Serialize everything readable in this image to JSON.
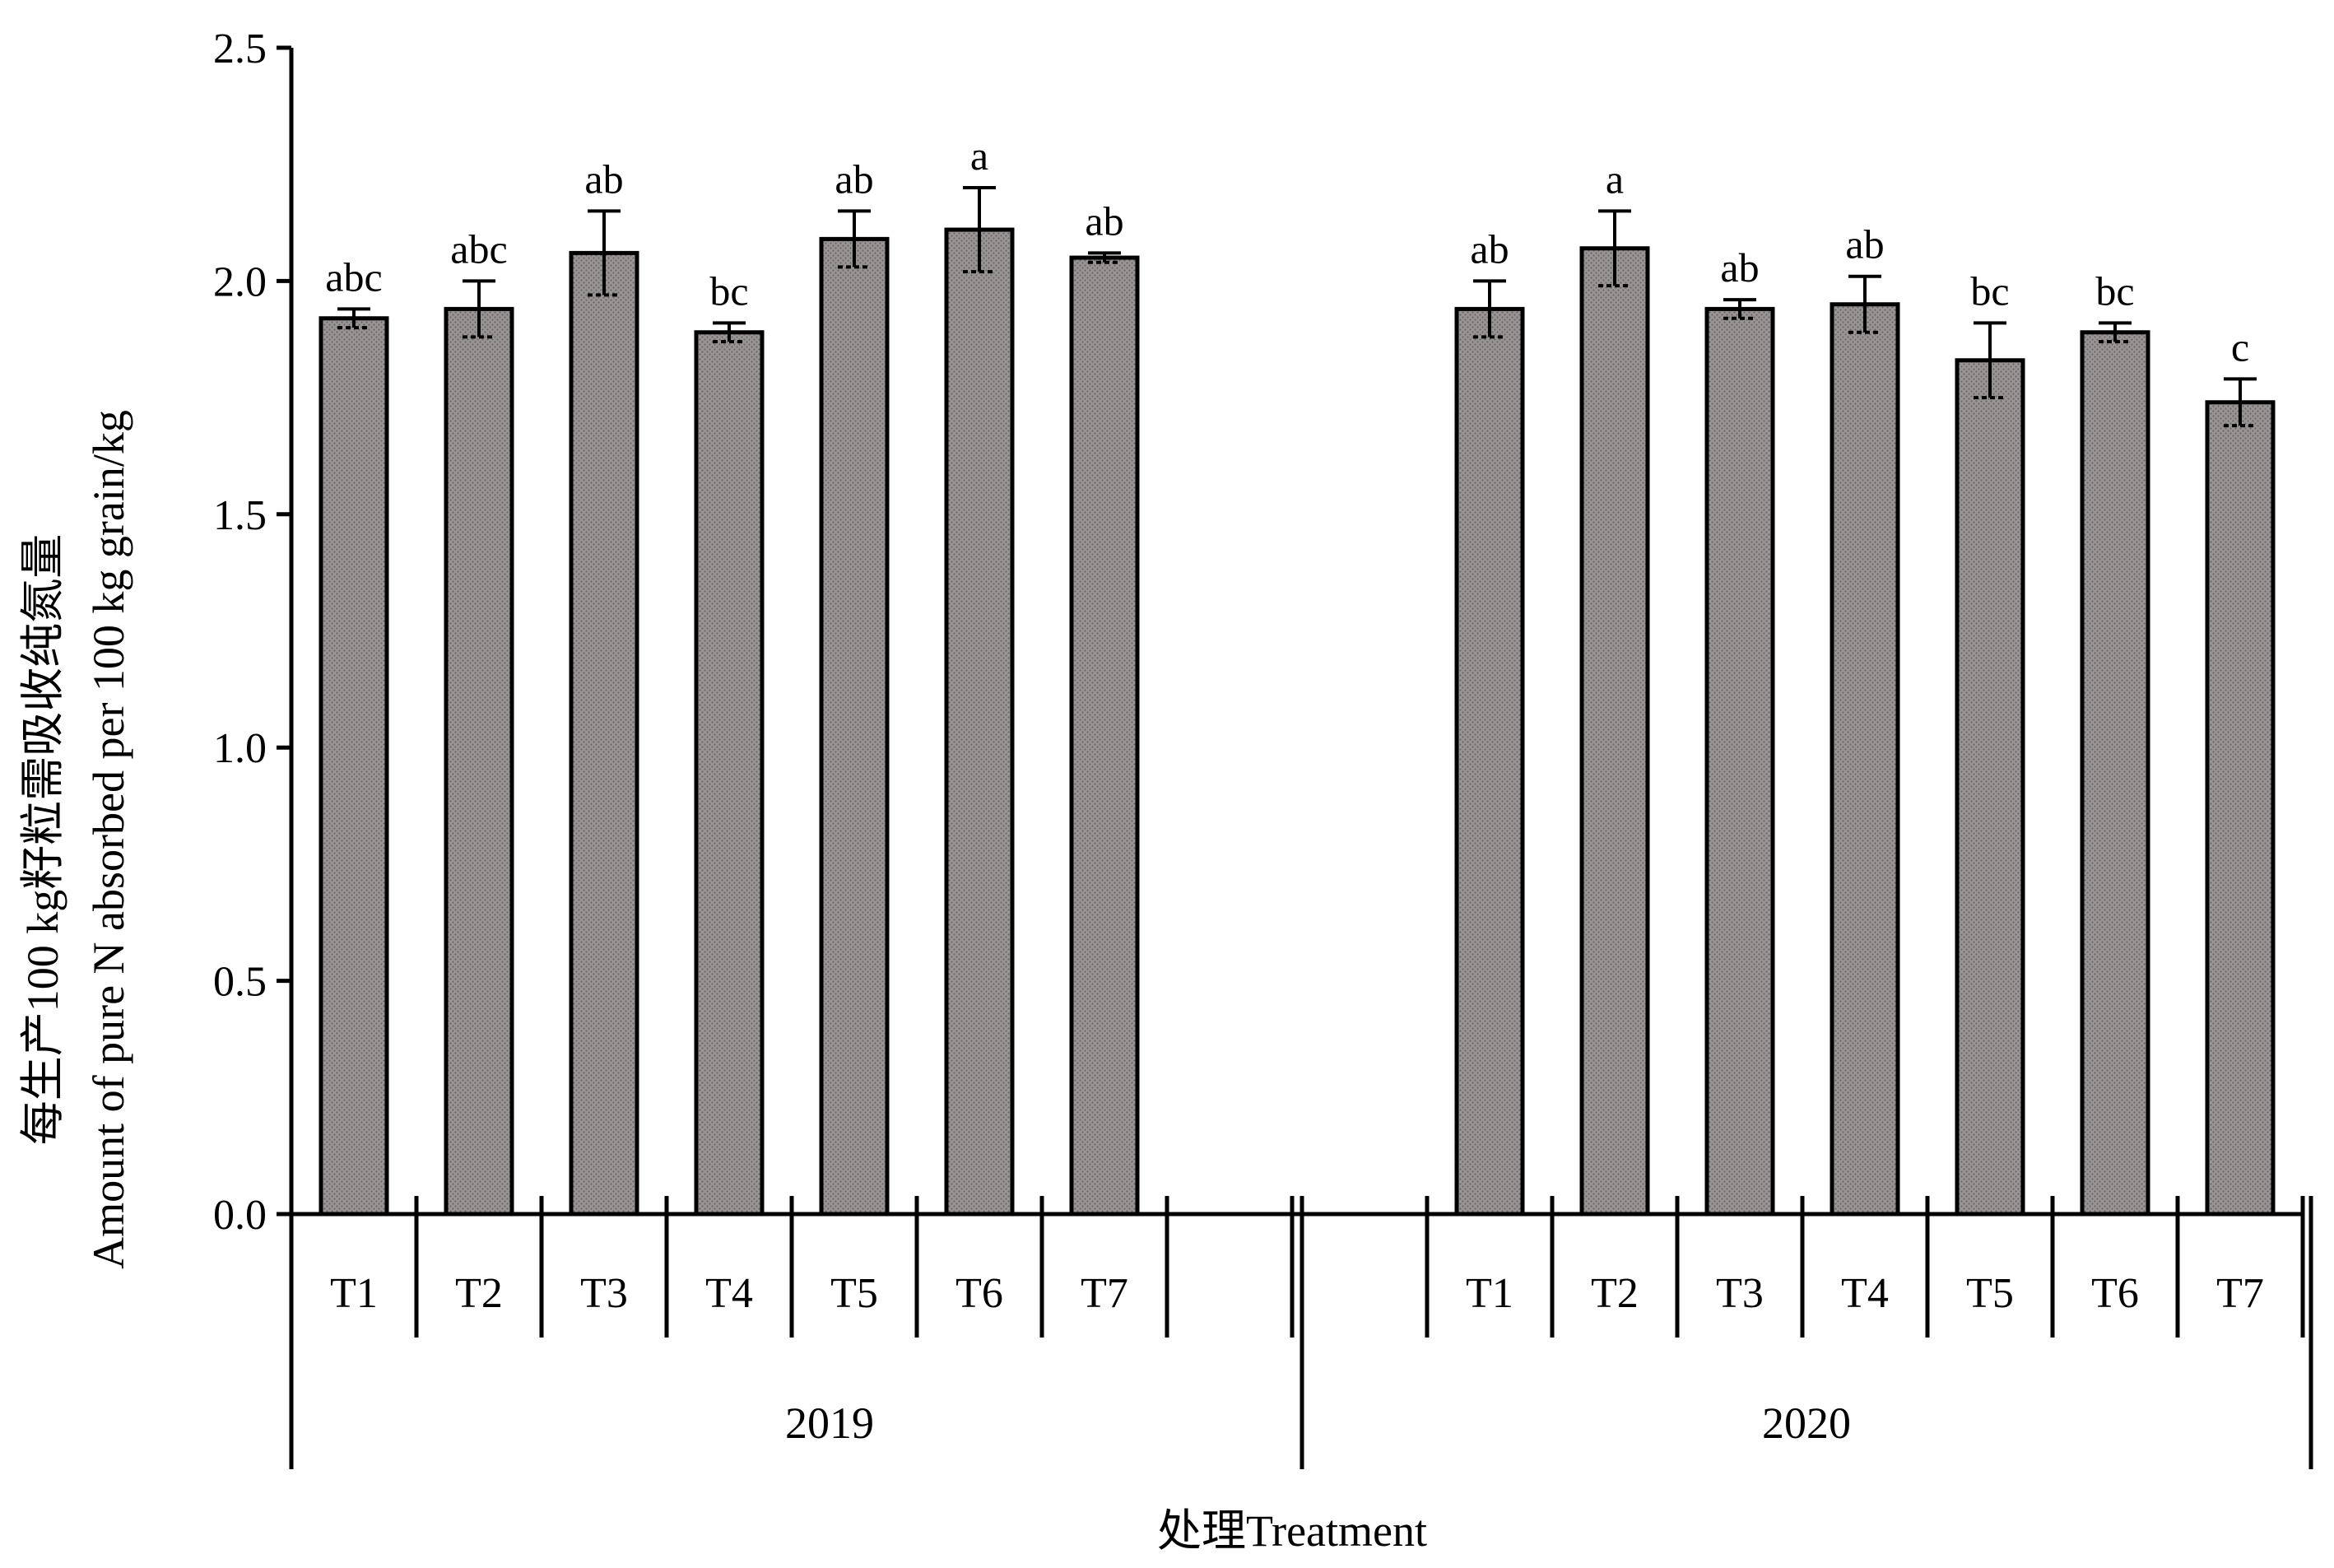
{
  "chart_data": {
    "type": "bar",
    "ylabel_cn": "每生产100 kg籽粒需吸收纯氮量",
    "ylabel_en": "Amount of pure N absorbed per 100 kg grain/kg",
    "xlabel": "处理Treatment",
    "ylim": [
      0,
      2.5
    ],
    "yticks": [
      "0.0",
      "0.5",
      "1.0",
      "1.5",
      "2.0",
      "2.5"
    ],
    "grid": false,
    "bar_color": "#8c8787",
    "groups": [
      {
        "label": "2019",
        "bars": [
          {
            "category": "T1",
            "value": 1.92,
            "error": 0.02,
            "sig": "abc"
          },
          {
            "category": "T2",
            "value": 1.94,
            "error": 0.06,
            "sig": "abc"
          },
          {
            "category": "T3",
            "value": 2.06,
            "error": 0.09,
            "sig": "ab"
          },
          {
            "category": "T4",
            "value": 1.89,
            "error": 0.02,
            "sig": "bc"
          },
          {
            "category": "T5",
            "value": 2.09,
            "error": 0.06,
            "sig": "ab"
          },
          {
            "category": "T6",
            "value": 2.11,
            "error": 0.09,
            "sig": "a"
          },
          {
            "category": "T7",
            "value": 2.05,
            "error": 0.01,
            "sig": "ab"
          }
        ]
      },
      {
        "label": "2020",
        "bars": [
          {
            "category": "T1",
            "value": 1.94,
            "error": 0.06,
            "sig": "ab"
          },
          {
            "category": "T2",
            "value": 2.07,
            "error": 0.08,
            "sig": "a"
          },
          {
            "category": "T3",
            "value": 1.94,
            "error": 0.02,
            "sig": "ab"
          },
          {
            "category": "T4",
            "value": 1.95,
            "error": 0.06,
            "sig": "ab"
          },
          {
            "category": "T5",
            "value": 1.83,
            "error": 0.08,
            "sig": "bc"
          },
          {
            "category": "T6",
            "value": 1.89,
            "error": 0.02,
            "sig": "bc"
          },
          {
            "category": "T7",
            "value": 1.74,
            "error": 0.05,
            "sig": "c"
          }
        ]
      }
    ]
  }
}
